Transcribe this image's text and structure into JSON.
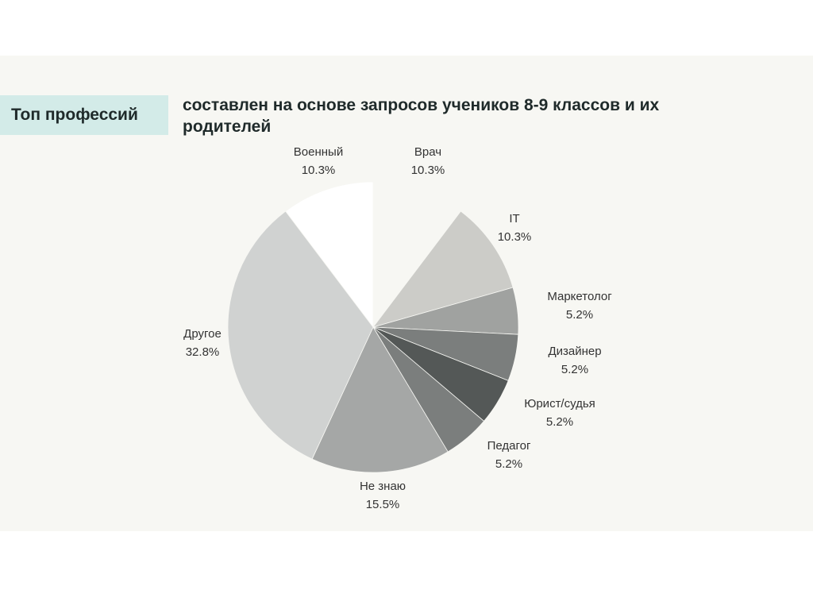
{
  "header": {
    "title": "Топ профессий",
    "subtitle": "составлен на основе запросов учеников 8-9 классов и их родителей"
  },
  "chart_data": {
    "type": "pie",
    "title": "Топ профессий",
    "subtitle": "составлен на основе запросов учеников 8-9 классов и их родителей",
    "start_angle_deg": 0,
    "direction": "clockwise",
    "slices": [
      {
        "label": "Врач",
        "value": 10.3,
        "value_label": "10.3%",
        "color": "#f7f7f3"
      },
      {
        "label": "IT",
        "value": 10.3,
        "value_label": "10.3%",
        "color": "#ccccc8"
      },
      {
        "label": "Маркетолог",
        "value": 5.2,
        "value_label": "5.2%",
        "color": "#a0a2a0"
      },
      {
        "label": "Дизайнер",
        "value": 5.2,
        "value_label": "5.2%",
        "color": "#7b7e7d"
      },
      {
        "label": "Юрист/судья",
        "value": 5.2,
        "value_label": "5.2%",
        "color": "#545857"
      },
      {
        "label": "Педагог",
        "value": 5.2,
        "value_label": "5.2%",
        "color": "#7b7e7d"
      },
      {
        "label": "Не знаю",
        "value": 15.5,
        "value_label": "15.5%",
        "color": "#a5a7a6"
      },
      {
        "label": "Другое",
        "value": 32.8,
        "value_label": "32.8%",
        "color": "#d0d2d1"
      },
      {
        "label": "Военный",
        "value": 10.3,
        "value_label": "10.3%",
        "color": "#ffffff"
      }
    ]
  }
}
